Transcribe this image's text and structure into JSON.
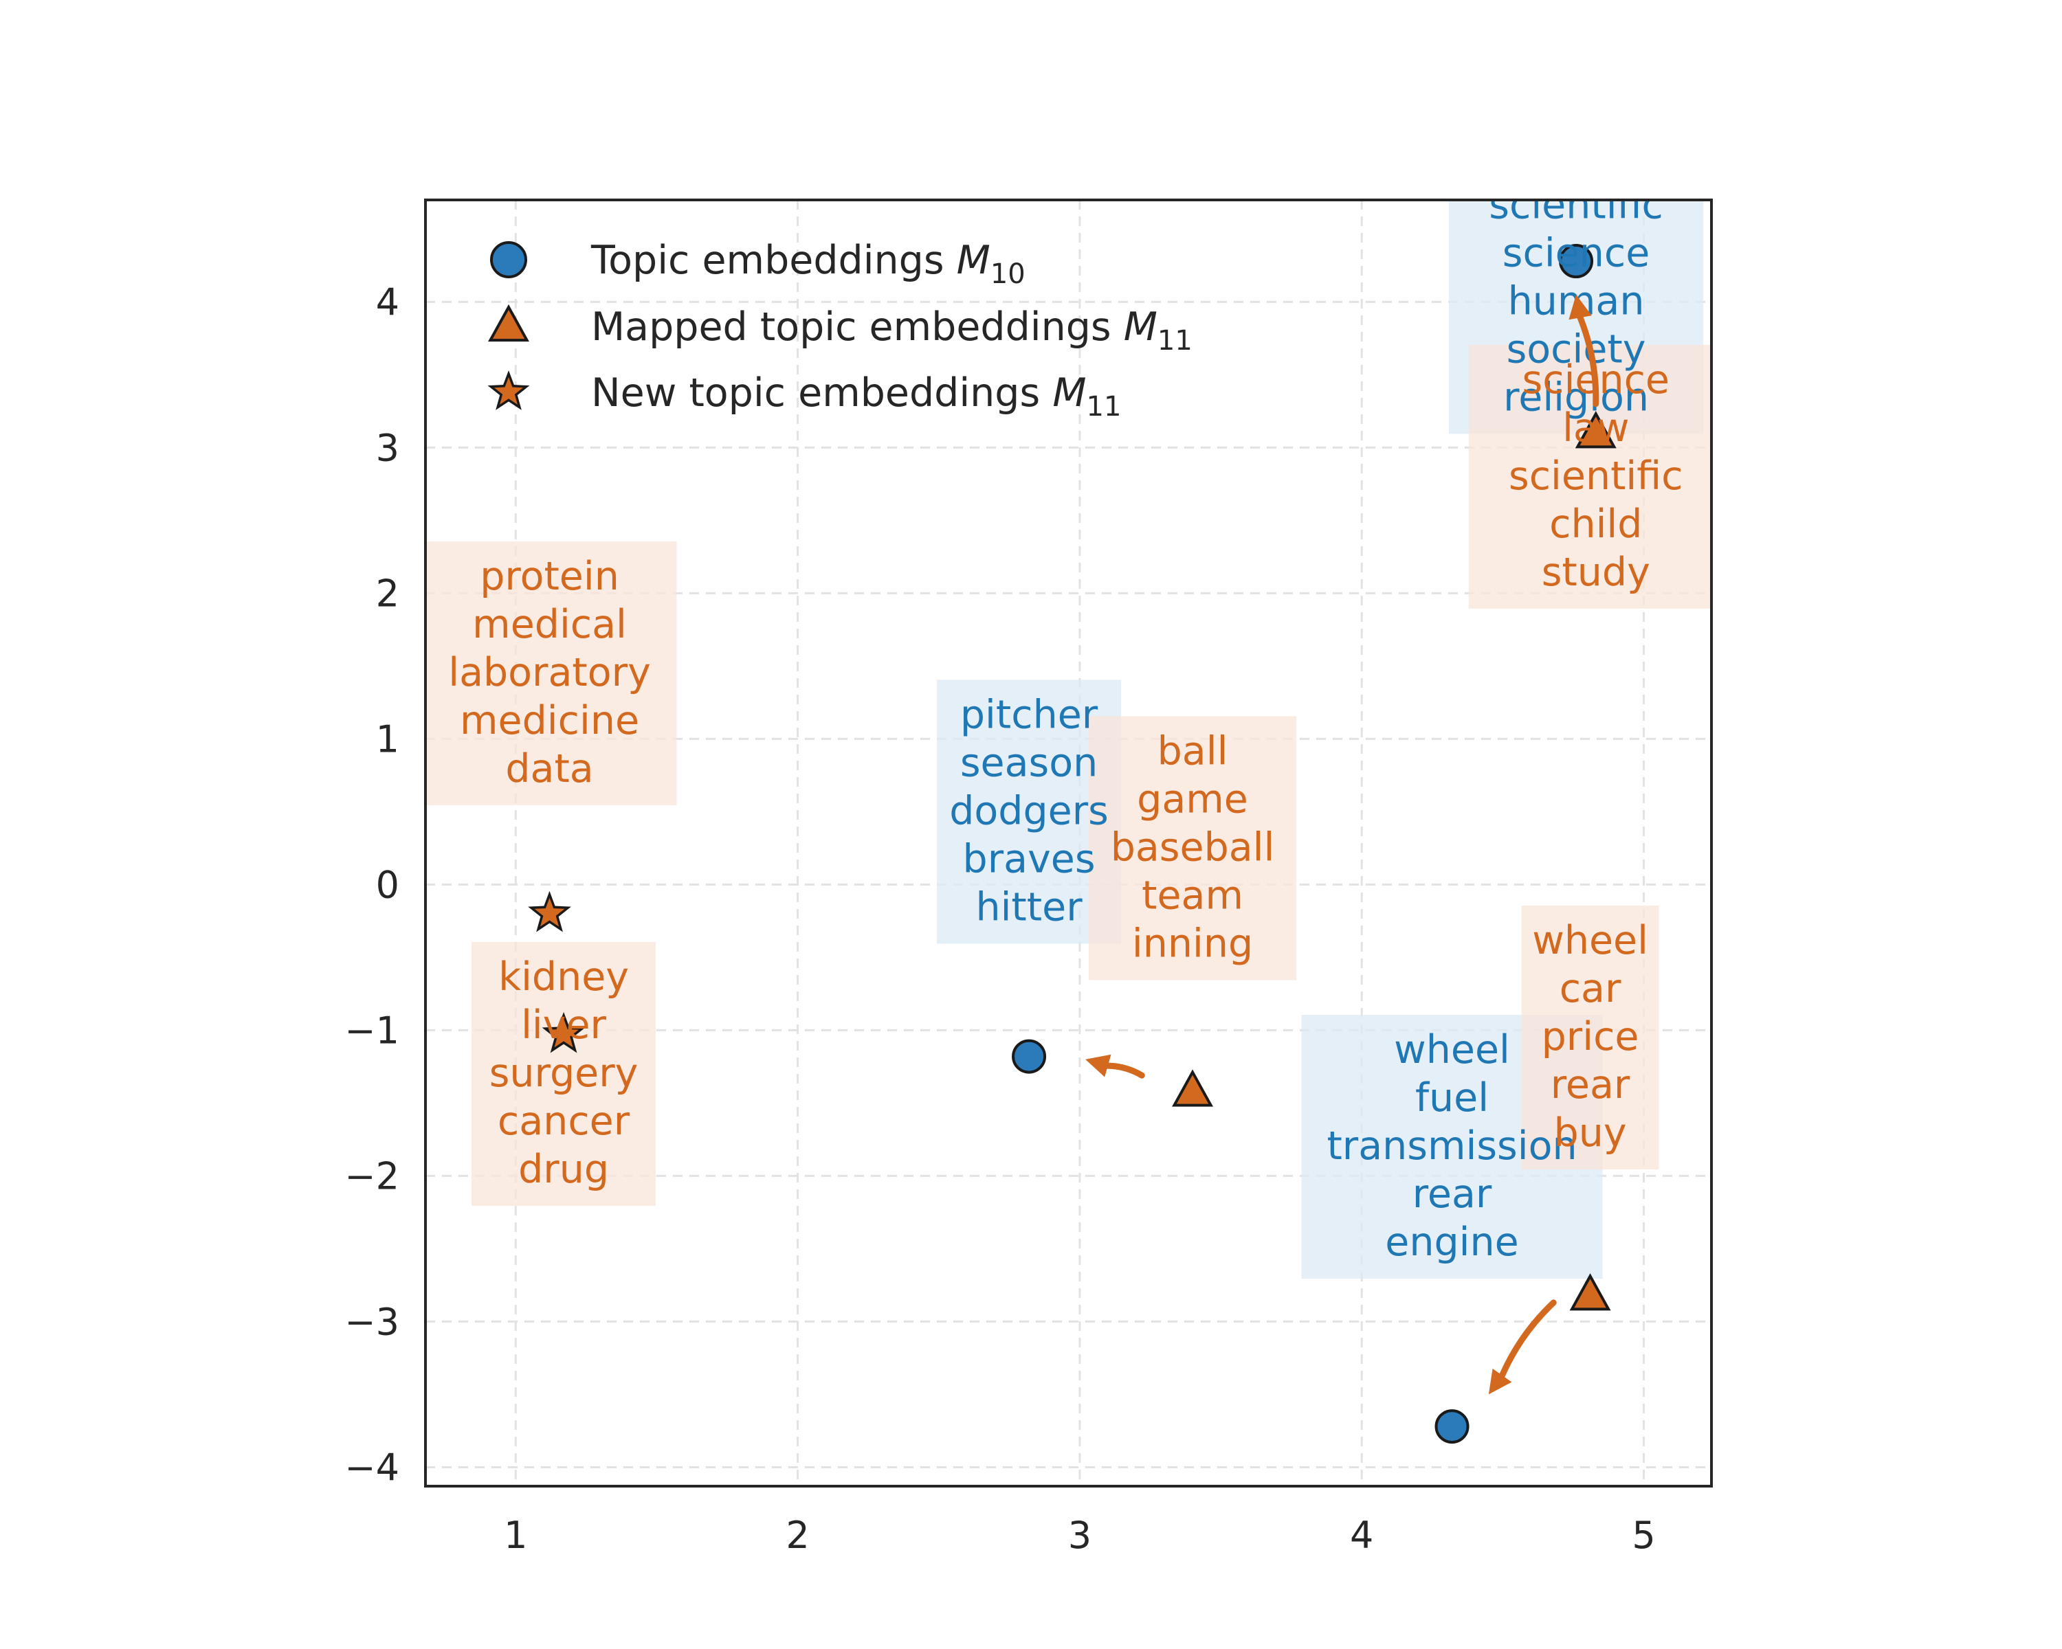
{
  "chart_data": {
    "type": "scatter",
    "title": "",
    "xlabel": "",
    "ylabel": "",
    "xlim": [
      0.68,
      5.24
    ],
    "ylim": [
      -4.13,
      4.7
    ],
    "grid": true,
    "legend_placement": "top-left",
    "xticks": [
      "1",
      "2",
      "3",
      "4",
      "5"
    ],
    "yticks": [
      "4",
      "3",
      "2",
      "1",
      "0",
      "−1",
      "−2",
      "−3",
      "−4"
    ],
    "xtick_values": [
      1,
      2,
      3,
      4,
      5
    ],
    "ytick_values": [
      4,
      3,
      2,
      1,
      0,
      -1,
      -2,
      -3,
      -4
    ],
    "colors": {
      "blue": "#2b7bba",
      "orange": "#d2691e",
      "blue_box": "#dce9f5",
      "orange_box": "#f8e4da"
    },
    "legend": [
      {
        "marker": "circle",
        "label": "Topic embeddings ",
        "sym": "M",
        "sub": "10"
      },
      {
        "marker": "triangle",
        "label": "Mapped topic embeddings ",
        "sym": "M",
        "sub": "11"
      },
      {
        "marker": "star",
        "label": "New topic embeddings ",
        "sym": "M",
        "sub": "11"
      }
    ],
    "series": [
      {
        "marker": "circle",
        "points": [
          {
            "x": 4.76,
            "y": 4.28
          },
          {
            "x": 2.82,
            "y": -1.18
          },
          {
            "x": 4.32,
            "y": -3.72
          }
        ]
      },
      {
        "marker": "triangle",
        "points": [
          {
            "x": 4.83,
            "y": 3.1
          },
          {
            "x": 3.4,
            "y": -1.42
          },
          {
            "x": 4.81,
            "y": -2.82
          }
        ]
      },
      {
        "marker": "star",
        "points": [
          {
            "x": 1.12,
            "y": -0.2
          },
          {
            "x": 1.17,
            "y": -1.03
          }
        ]
      }
    ],
    "arrows": [
      {
        "from": [
          4.83,
          3.3
        ],
        "to": [
          4.76,
          4.05
        ]
      },
      {
        "from": [
          3.22,
          -1.31
        ],
        "to": [
          3.02,
          -1.2
        ]
      },
      {
        "from": [
          4.68,
          -2.87
        ],
        "to": [
          4.45,
          -3.5
        ]
      }
    ],
    "annotations": [
      {
        "color": "blue",
        "x": 4.76,
        "y": 4.0,
        "words": [
          "scientific",
          "science",
          "human",
          "society",
          "religion"
        ]
      },
      {
        "color": "orange",
        "x": 4.83,
        "y": 2.8,
        "words": [
          "science",
          "law",
          "scientific",
          "child",
          "study"
        ]
      },
      {
        "color": "orange",
        "x": 1.12,
        "y": 1.45,
        "words": [
          "protein",
          "medical",
          "laboratory",
          "medicine",
          "data"
        ]
      },
      {
        "color": "orange",
        "x": 1.17,
        "y": -1.3,
        "words": [
          "kidney",
          "liver",
          "surgery",
          "cancer",
          "drug"
        ]
      },
      {
        "color": "blue",
        "x": 2.82,
        "y": 0.5,
        "words": [
          "pitcher",
          "season",
          "dodgers",
          "braves",
          "hitter"
        ]
      },
      {
        "color": "orange",
        "x": 3.4,
        "y": 0.25,
        "words": [
          "ball",
          "game",
          "baseball",
          "team",
          "inning"
        ]
      },
      {
        "color": "blue",
        "x": 4.32,
        "y": -1.8,
        "words": [
          "wheel",
          "fuel",
          "transmission",
          "rear",
          "engine"
        ]
      },
      {
        "color": "orange",
        "x": 4.81,
        "y": -1.05,
        "words": [
          "wheel",
          "car",
          "price",
          "rear",
          "buy"
        ]
      }
    ]
  }
}
